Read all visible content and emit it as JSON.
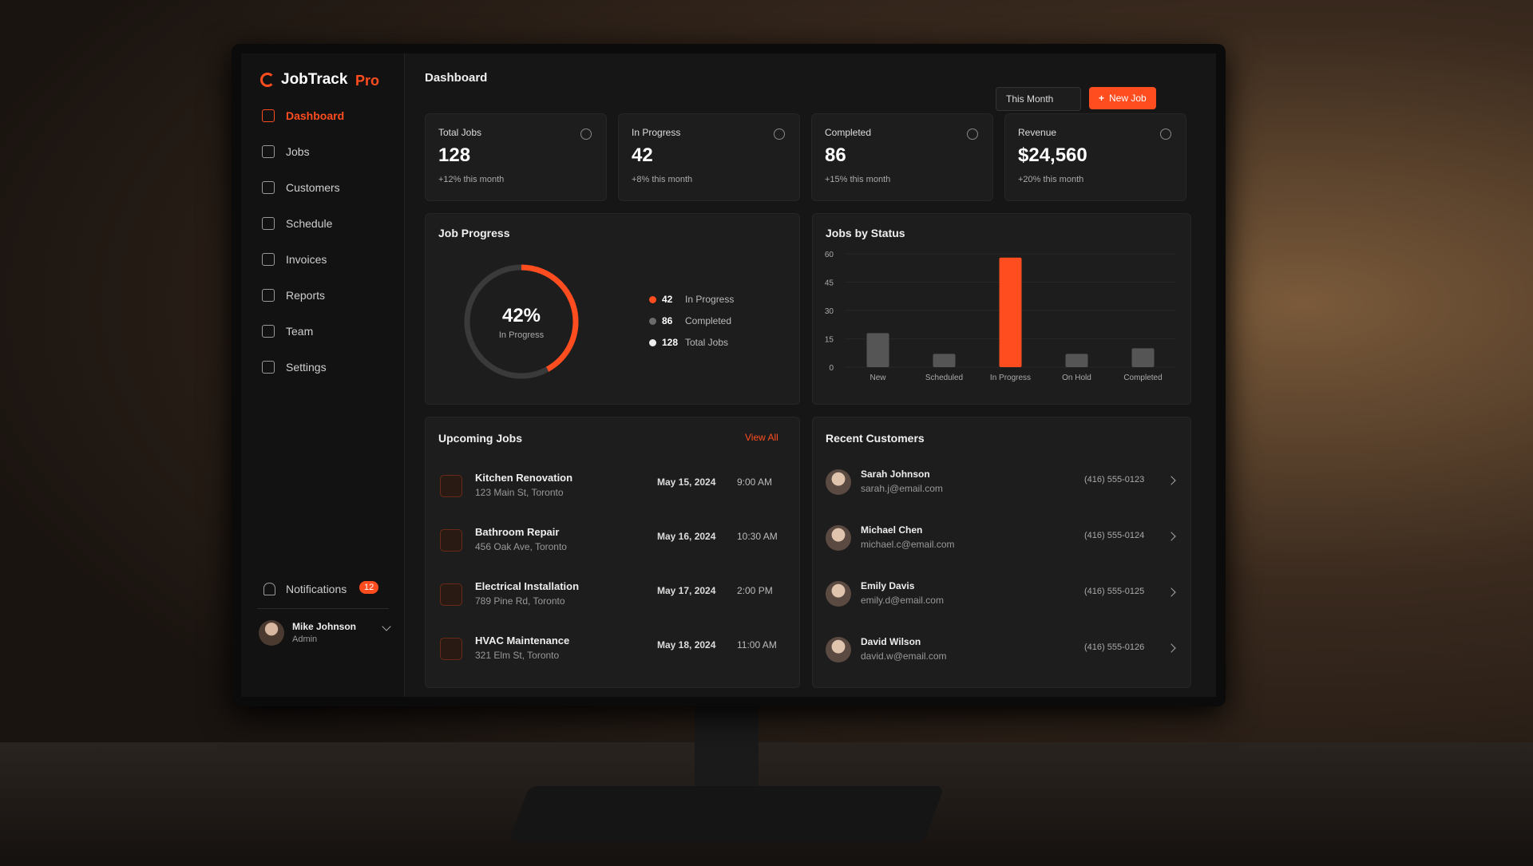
{
  "sidebar": {
    "brand": "JobTrack",
    "brand_accent": "Pro",
    "nav": [
      "Dashboard",
      "Jobs",
      "Customers",
      "Schedule",
      "Invoices",
      "Reports",
      "Team",
      "Settings"
    ],
    "notifications": {
      "label": "Notifications",
      "count": "12"
    },
    "user": {
      "name": "Mike Johnson",
      "role": "Admin"
    }
  },
  "header": {
    "title": "Dashboard",
    "period": "This Month",
    "new_job": "New Job"
  },
  "stats": [
    {
      "label": "Total Jobs",
      "value": "128",
      "change": "+12% this month"
    },
    {
      "label": "In Progress",
      "value": "42",
      "change": "+8% this month"
    },
    {
      "label": "Completed",
      "value": "86",
      "change": "+15% this month"
    },
    {
      "label": "Revenue",
      "value": "$24,560",
      "change": "+20% this month"
    }
  ],
  "job_progress": {
    "title": "Job Progress",
    "percent": 42,
    "percent_label": "42%",
    "caption": "In Progress",
    "legend": [
      {
        "count": "42",
        "label": "In Progress",
        "color": "#ff4d1f"
      },
      {
        "count": "86",
        "label": "Completed",
        "color": "#6b6b6b"
      },
      {
        "count": "128",
        "label": "Total Jobs",
        "color": "#eeeeee"
      }
    ]
  },
  "jobs_by_status": {
    "type": "bar",
    "title": "Jobs by Status",
    "categories": [
      "New",
      "Scheduled",
      "In Progress",
      "On Hold",
      "Completed"
    ],
    "values": [
      18,
      7,
      58,
      7,
      10
    ],
    "colors": [
      "#555555",
      "#555555",
      "#ff4d1f",
      "#555555",
      "#555555"
    ],
    "ylim": [
      0,
      60
    ],
    "yticks": [
      0,
      15,
      30,
      45,
      60
    ]
  },
  "upcoming_jobs": {
    "title": "Upcoming Jobs",
    "link": "View All",
    "rows": [
      {
        "name": "Kitchen Renovation",
        "address": "123 Main St, Toronto",
        "date": "May 15, 2024",
        "time": "9:00 AM"
      },
      {
        "name": "Bathroom Repair",
        "address": "456 Oak Ave, Toronto",
        "date": "May 16, 2024",
        "time": "10:30 AM"
      },
      {
        "name": "Electrical Installation",
        "address": "789 Pine Rd, Toronto",
        "date": "May 17, 2024",
        "time": "2:00 PM"
      },
      {
        "name": "HVAC Maintenance",
        "address": "321 Elm St, Toronto",
        "date": "May 18, 2024",
        "time": "11:00 AM"
      }
    ]
  },
  "recent_customers": {
    "title": "Recent Customers",
    "rows": [
      {
        "name": "Sarah Johnson",
        "email": "sarah.j@email.com",
        "phone": "(416) 555-0123"
      },
      {
        "name": "Michael Chen",
        "email": "michael.c@email.com",
        "phone": "(416) 555-0124"
      },
      {
        "name": "Emily Davis",
        "email": "emily.d@email.com",
        "phone": "(416) 555-0125"
      },
      {
        "name": "David Wilson",
        "email": "david.w@email.com",
        "phone": "(416) 555-0126"
      }
    ]
  }
}
